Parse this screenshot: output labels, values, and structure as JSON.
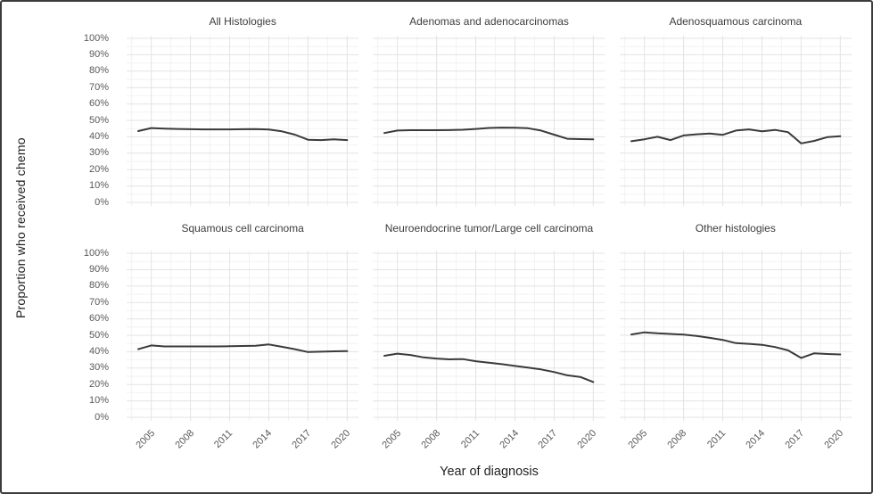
{
  "chart_data": {
    "type": "line",
    "layout": "facet-grid-2x3",
    "xlabel": "Year of diagnosis",
    "ylabel": "Proportion who received chemo",
    "x": [
      2004,
      2005,
      2006,
      2007,
      2008,
      2009,
      2010,
      2011,
      2012,
      2013,
      2014,
      2015,
      2016,
      2017,
      2018,
      2019,
      2020
    ],
    "x_ticks": [
      2005,
      2008,
      2011,
      2014,
      2017,
      2020
    ],
    "x_tick_labels": [
      "2005",
      "2008",
      "2011",
      "2014",
      "2017",
      "2020"
    ],
    "y_ticks": [
      0,
      10,
      20,
      30,
      40,
      50,
      60,
      70,
      80,
      90,
      100
    ],
    "y_tick_labels": [
      "0%",
      "10%",
      "20%",
      "30%",
      "40%",
      "50%",
      "60%",
      "70%",
      "80%",
      "90%",
      "100%"
    ],
    "ylim": [
      0,
      100
    ],
    "grid": "major 10% / 3yr, minor 5% / 1.5yr, light gray, no legend",
    "panels": [
      {
        "title": "All Histologies",
        "values": [
          43.5,
          45.3,
          45.0,
          44.8,
          44.6,
          44.5,
          44.5,
          44.5,
          44.6,
          44.7,
          44.4,
          43.3,
          41.3,
          38.2,
          38.0,
          38.4,
          38.0
        ]
      },
      {
        "title": "Adenomas and adenocarcinomas",
        "values": [
          42.3,
          43.8,
          44.0,
          44.0,
          44.0,
          44.1,
          44.3,
          44.8,
          45.4,
          45.6,
          45.5,
          45.2,
          43.8,
          41.3,
          38.8,
          38.6,
          38.4
        ]
      },
      {
        "title": "Adenosquamous carcinoma",
        "values": [
          37.3,
          38.5,
          40.0,
          38.0,
          40.8,
          41.5,
          42.0,
          41.2,
          43.8,
          44.5,
          43.3,
          44.2,
          42.8,
          36.0,
          37.5,
          39.8,
          40.3
        ]
      },
      {
        "title": "Squamous cell carcinoma",
        "values": [
          41.5,
          43.8,
          43.2,
          43.2,
          43.2,
          43.2,
          43.2,
          43.3,
          43.5,
          43.6,
          44.4,
          43.0,
          41.5,
          39.8,
          40.0,
          40.2,
          40.3
        ]
      },
      {
        "title": "Neuroendocrine tumor/Large cell carcinoma",
        "values": [
          37.5,
          38.8,
          38.0,
          36.5,
          35.8,
          35.3,
          35.5,
          34.2,
          33.3,
          32.4,
          31.3,
          30.3,
          29.2,
          27.6,
          25.6,
          24.6,
          21.5
        ]
      },
      {
        "title": "Other histologies",
        "values": [
          50.5,
          51.8,
          51.2,
          50.8,
          50.4,
          49.6,
          48.4,
          47.2,
          45.2,
          44.8,
          44.2,
          42.8,
          40.8,
          36.2,
          39.0,
          38.6,
          38.3
        ]
      }
    ],
    "colors": {
      "line": "#3a3a3a",
      "grid_major": "#e3e3e3",
      "grid_minor": "#f2f2f2",
      "tick_text": "#595959",
      "title_text": "#3d3d3d",
      "axis_title_text": "#1f1f1f",
      "frame_border": "#3c3c3c",
      "background": "#ffffff"
    }
  }
}
